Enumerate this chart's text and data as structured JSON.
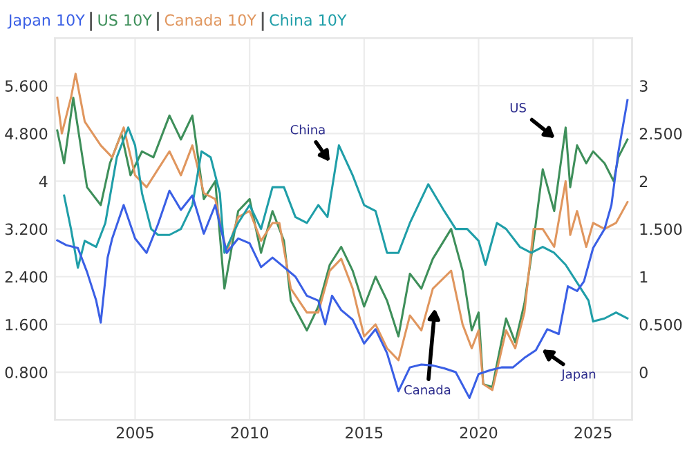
{
  "chart_data": {
    "type": "line",
    "legend": "top left",
    "grid": true,
    "marker": "none",
    "line_style": "solid",
    "xlim": [
      2001.5,
      2026.7
    ],
    "xticks": [
      2005,
      2010,
      2015,
      2020,
      2025
    ],
    "ylim": [
      0,
      6.4
    ],
    "yticks": [
      {
        "value": 0.8,
        "label": "0.800"
      },
      {
        "value": 1.6,
        "label": "1.600"
      },
      {
        "value": 2.4,
        "label": "2.400"
      },
      {
        "value": 3.2,
        "label": "3.200"
      },
      4,
      {
        "value": 4.8,
        "label": "4.800"
      },
      {
        "value": 5.6,
        "label": "5.600"
      }
    ],
    "y2lim": [
      -0.5,
      3.5
    ],
    "y2ticks": [
      0,
      {
        "value": 0.5,
        "label": "0.500"
      },
      1,
      {
        "value": 1.5,
        "label": "1.500"
      },
      2,
      {
        "value": 2.5,
        "label": "2.500"
      },
      3
    ],
    "series": [
      {
        "name": "Japan 10Y",
        "color": "#3a5fe5",
        "axis": "y2",
        "x": [
          2001.6,
          2002.0,
          2002.5,
          2002.9,
          2003.3,
          2003.5,
          2003.8,
          2004.0,
          2004.5,
          2005.0,
          2005.5,
          2006.0,
          2006.5,
          2007.0,
          2007.5,
          2008.0,
          2008.5,
          2009.0,
          2009.5,
          2010.0,
          2010.5,
          2011.0,
          2011.5,
          2012.0,
          2012.5,
          2013.0,
          2013.3,
          2013.6,
          2014.0,
          2014.5,
          2015.0,
          2015.5,
          2016.0,
          2016.5,
          2017.0,
          2017.5,
          2018.0,
          2018.5,
          2019.0,
          2019.6,
          2020.0,
          2020.5,
          2021.0,
          2021.5,
          2022.0,
          2022.5,
          2023.0,
          2023.5,
          2023.9,
          2024.3,
          2024.6,
          2025.0,
          2025.5,
          2025.8,
          2026.1,
          2026.5
        ],
        "values": [
          1.38,
          1.33,
          1.3,
          1.05,
          0.75,
          0.52,
          1.2,
          1.4,
          1.75,
          1.4,
          1.25,
          1.55,
          1.9,
          1.7,
          1.85,
          1.45,
          1.75,
          1.25,
          1.4,
          1.35,
          1.1,
          1.2,
          1.1,
          1.0,
          0.8,
          0.75,
          0.5,
          0.8,
          0.65,
          0.55,
          0.3,
          0.45,
          0.2,
          -0.2,
          0.05,
          0.08,
          0.07,
          0.04,
          0.0,
          -0.27,
          -0.02,
          0.02,
          0.05,
          0.05,
          0.15,
          0.23,
          0.45,
          0.4,
          0.9,
          0.85,
          0.95,
          1.3,
          1.5,
          1.75,
          2.3,
          2.85
        ]
      },
      {
        "name": "US 10Y",
        "color": "#3e8f5a",
        "x": [
          2001.6,
          2001.9,
          2002.3,
          2002.9,
          2003.5,
          2003.9,
          2004.4,
          2004.8,
          2005.3,
          2005.8,
          2006.5,
          2007.0,
          2007.5,
          2008.0,
          2008.5,
          2008.9,
          2009.5,
          2010.0,
          2010.5,
          2011.0,
          2011.5,
          2011.8,
          2012.5,
          2013.0,
          2013.5,
          2014.0,
          2014.5,
          2015.0,
          2015.5,
          2016.0,
          2016.5,
          2017.0,
          2017.5,
          2018.0,
          2018.8,
          2019.3,
          2019.7,
          2020.0,
          2020.2,
          2020.6,
          2021.2,
          2021.6,
          2022.0,
          2022.4,
          2022.8,
          2023.3,
          2023.8,
          2024.0,
          2024.3,
          2024.7,
          2025.0,
          2025.5,
          2025.9,
          2026.1,
          2026.5
        ],
        "values": [
          4.85,
          4.3,
          5.4,
          3.9,
          3.6,
          4.3,
          4.8,
          4.1,
          4.5,
          4.4,
          5.1,
          4.7,
          5.1,
          3.7,
          4.0,
          2.2,
          3.5,
          3.7,
          2.8,
          3.5,
          3.0,
          2.0,
          1.5,
          1.9,
          2.6,
          2.9,
          2.5,
          1.9,
          2.4,
          2.0,
          1.4,
          2.45,
          2.2,
          2.7,
          3.2,
          2.5,
          1.5,
          1.8,
          0.6,
          0.55,
          1.7,
          1.3,
          1.95,
          3.0,
          4.2,
          3.5,
          4.9,
          3.9,
          4.6,
          4.3,
          4.5,
          4.3,
          4.0,
          4.4,
          4.7
        ]
      },
      {
        "name": "Canada 10Y",
        "color": "#e0965e",
        "x": [
          2001.6,
          2001.8,
          2002.2,
          2002.4,
          2002.8,
          2003.5,
          2004.0,
          2004.5,
          2005.0,
          2005.5,
          2006.0,
          2006.5,
          2007.0,
          2007.5,
          2008.0,
          2008.5,
          2009.0,
          2009.5,
          2010.0,
          2010.5,
          2011.0,
          2011.3,
          2011.8,
          2012.5,
          2013.0,
          2013.5,
          2014.0,
          2014.5,
          2015.0,
          2015.5,
          2016.0,
          2016.5,
          2017.0,
          2017.5,
          2018.0,
          2018.8,
          2019.3,
          2019.7,
          2020.0,
          2020.2,
          2020.6,
          2021.2,
          2021.6,
          2022.0,
          2022.4,
          2022.8,
          2023.3,
          2023.8,
          2024.0,
          2024.3,
          2024.7,
          2025.0,
          2025.5,
          2026.0,
          2026.5
        ],
        "values": [
          5.4,
          4.8,
          5.4,
          5.8,
          5.0,
          4.6,
          4.4,
          4.9,
          4.1,
          3.9,
          4.2,
          4.5,
          4.1,
          4.6,
          3.8,
          3.7,
          2.8,
          3.4,
          3.5,
          3.0,
          3.3,
          3.3,
          2.2,
          1.8,
          1.8,
          2.5,
          2.7,
          2.2,
          1.4,
          1.6,
          1.2,
          1.0,
          1.75,
          1.5,
          2.2,
          2.5,
          1.6,
          1.2,
          1.5,
          0.6,
          0.5,
          1.5,
          1.2,
          1.8,
          3.2,
          3.2,
          2.9,
          4.0,
          3.1,
          3.5,
          2.9,
          3.3,
          3.2,
          3.3,
          3.65
        ]
      },
      {
        "name": "China 10Y",
        "color": "#1f9ea8",
        "x": [
          2001.9,
          2002.2,
          2002.5,
          2002.8,
          2003.3,
          2003.7,
          2004.2,
          2004.7,
          2005.0,
          2005.3,
          2005.7,
          2006.0,
          2006.5,
          2007.0,
          2007.5,
          2007.9,
          2008.3,
          2008.7,
          2008.9,
          2009.5,
          2010.0,
          2010.5,
          2011.0,
          2011.5,
          2012.0,
          2012.5,
          2013.0,
          2013.4,
          2013.9,
          2014.5,
          2015.0,
          2015.5,
          2016.0,
          2016.5,
          2017.0,
          2017.8,
          2018.5,
          2019.0,
          2019.5,
          2020.0,
          2020.3,
          2020.8,
          2021.2,
          2021.8,
          2022.3,
          2022.8,
          2023.3,
          2023.8,
          2024.3,
          2024.8,
          2025.0,
          2025.5,
          2026.0,
          2026.5
        ],
        "values": [
          3.76,
          3.2,
          2.55,
          3.0,
          2.9,
          3.3,
          4.4,
          4.9,
          4.6,
          3.8,
          3.2,
          3.1,
          3.1,
          3.2,
          3.6,
          4.5,
          4.4,
          3.8,
          2.8,
          3.3,
          3.6,
          3.2,
          3.9,
          3.9,
          3.4,
          3.3,
          3.6,
          3.4,
          4.6,
          4.1,
          3.6,
          3.5,
          2.8,
          2.8,
          3.3,
          3.95,
          3.5,
          3.2,
          3.2,
          3.0,
          2.6,
          3.3,
          3.2,
          2.9,
          2.8,
          2.9,
          2.8,
          2.6,
          2.3,
          2.0,
          1.65,
          1.7,
          1.8,
          1.7
        ]
      }
    ],
    "annotations": [
      {
        "text": "China",
        "x": 2013.55,
        "y": 4.3
      },
      {
        "text": "US",
        "x": 2023.4,
        "y": 4.7
      },
      {
        "text": "Canada",
        "x": 2018.1,
        "y": 1.9
      },
      {
        "text": "Japan",
        "x": 2022.7,
        "y": 1.2
      }
    ]
  }
}
